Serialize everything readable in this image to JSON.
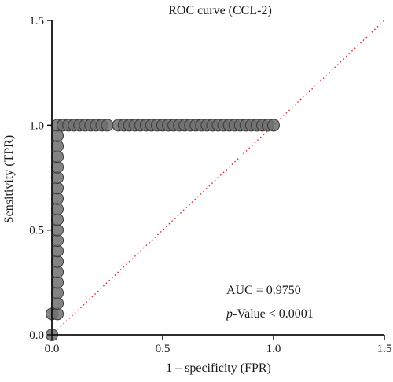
{
  "chart_data": {
    "type": "scatter",
    "title": "ROC curve (CCL-2)",
    "xlabel": "1 – specificity (FPR)",
    "ylabel": "Sensitivity (TPR)",
    "xlim": [
      0,
      1.5
    ],
    "ylim": [
      0,
      1.5
    ],
    "xticks": [
      "0.0",
      "0.5",
      "1.0",
      "1.5"
    ],
    "yticks": [
      "0.0",
      "0.5",
      "1.0",
      "1.5"
    ],
    "grid": false,
    "annotations": {
      "auc": "AUC = 0.9750",
      "p_italic": "p",
      "p_rest": "-Value < 0.0001"
    },
    "series": [
      {
        "type": "scatter",
        "color": "#6e6e6e",
        "points": [
          [
            0.0,
            0.0
          ],
          [
            0.0,
            0.1
          ],
          [
            0.025,
            0.1
          ],
          [
            0.025,
            0.15
          ],
          [
            0.025,
            0.2
          ],
          [
            0.025,
            0.25
          ],
          [
            0.025,
            0.3
          ],
          [
            0.025,
            0.35
          ],
          [
            0.025,
            0.4
          ],
          [
            0.025,
            0.45
          ],
          [
            0.025,
            0.5
          ],
          [
            0.025,
            0.55
          ],
          [
            0.025,
            0.6
          ],
          [
            0.025,
            0.65
          ],
          [
            0.025,
            0.7
          ],
          [
            0.025,
            0.75
          ],
          [
            0.025,
            0.8
          ],
          [
            0.025,
            0.85
          ],
          [
            0.025,
            0.9
          ],
          [
            0.025,
            0.95
          ],
          [
            0.025,
            1.0
          ],
          [
            0.05,
            1.0
          ],
          [
            0.075,
            1.0
          ],
          [
            0.1,
            1.0
          ],
          [
            0.125,
            1.0
          ],
          [
            0.15,
            1.0
          ],
          [
            0.175,
            1.0
          ],
          [
            0.2,
            1.0
          ],
          [
            0.225,
            1.0
          ],
          [
            0.25,
            1.0
          ],
          [
            0.3,
            1.0
          ],
          [
            0.325,
            1.0
          ],
          [
            0.35,
            1.0
          ],
          [
            0.375,
            1.0
          ],
          [
            0.4,
            1.0
          ],
          [
            0.425,
            1.0
          ],
          [
            0.45,
            1.0
          ],
          [
            0.475,
            1.0
          ],
          [
            0.5,
            1.0
          ],
          [
            0.525,
            1.0
          ],
          [
            0.55,
            1.0
          ],
          [
            0.575,
            1.0
          ],
          [
            0.6,
            1.0
          ],
          [
            0.625,
            1.0
          ],
          [
            0.65,
            1.0
          ],
          [
            0.675,
            1.0
          ],
          [
            0.7,
            1.0
          ],
          [
            0.725,
            1.0
          ],
          [
            0.75,
            1.0
          ],
          [
            0.775,
            1.0
          ],
          [
            0.8,
            1.0
          ],
          [
            0.825,
            1.0
          ],
          [
            0.85,
            1.0
          ],
          [
            0.875,
            1.0
          ],
          [
            0.9,
            1.0
          ],
          [
            0.925,
            1.0
          ],
          [
            0.95,
            1.0
          ],
          [
            0.975,
            1.0
          ],
          [
            1.0,
            1.0
          ]
        ]
      },
      {
        "type": "line",
        "style": "dotted",
        "color": "#e0303a",
        "x": [
          0,
          1.5
        ],
        "y": [
          0,
          1.5
        ]
      }
    ]
  }
}
